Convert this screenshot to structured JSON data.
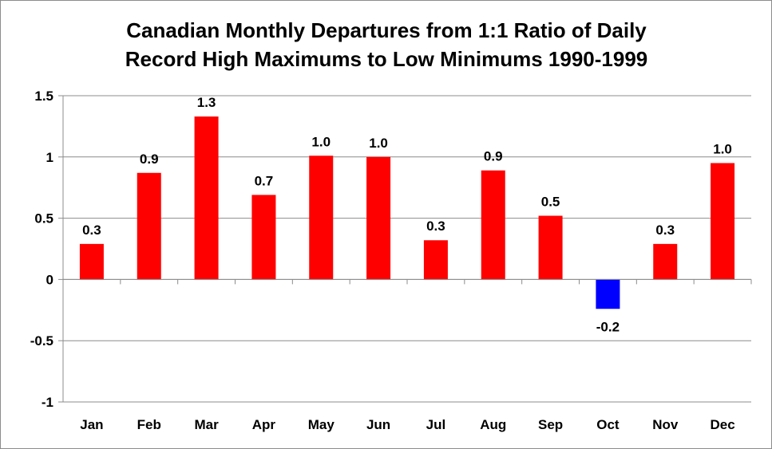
{
  "chart_data": {
    "type": "bar",
    "title_lines": [
      "Canadian Monthly Departures from 1:1 Ratio of Daily",
      "Record  High Maximums to Low Minimums 1990-1999"
    ],
    "categories": [
      "Jan",
      "Feb",
      "Mar",
      "Apr",
      "May",
      "Jun",
      "Jul",
      "Aug",
      "Sep",
      "Oct",
      "Nov",
      "Dec"
    ],
    "values": [
      0.29,
      0.87,
      1.33,
      0.69,
      1.01,
      1.0,
      0.32,
      0.89,
      0.52,
      -0.24,
      0.29,
      0.95
    ],
    "data_labels": [
      "0.3",
      "0.9",
      "1.3",
      "0.7",
      "1.0",
      "1.0",
      "0.3",
      "0.9",
      "0.5",
      "-0.2",
      "0.3",
      "1.0"
    ],
    "ylim": [
      -1,
      1.5
    ],
    "yticks": [
      1.5,
      1,
      0.5,
      0,
      -0.5,
      -1
    ],
    "ytick_labels": [
      "1.5",
      "1",
      "0.5",
      "0",
      "-0.5",
      "-1"
    ],
    "grid": true,
    "colors": {
      "positive": "#ff0000",
      "negative": "#0000ff",
      "grid": "#8c8c8c"
    }
  }
}
